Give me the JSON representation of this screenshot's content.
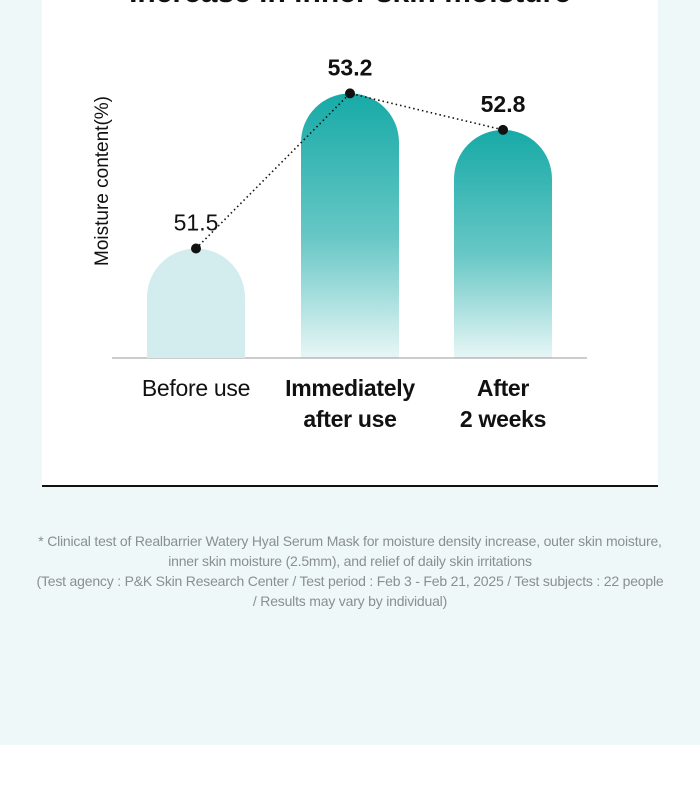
{
  "chart_data": {
    "type": "bar",
    "title": "Increase in inner skin moisture",
    "y_label": "Moisture content(%)",
    "categories": [
      "Before use",
      "Immediately\nafter use",
      "After\n2 weeks"
    ],
    "values": [
      51.5,
      53.2,
      52.8
    ],
    "colors": [
      "#d3ecee",
      "#17aaa7",
      "#17aaa7"
    ],
    "line_color": "#111111",
    "ylim": [
      50.3,
      53.5
    ]
  },
  "footnote": [
    "* Clinical test of Realbarrier Watery Hyal Serum Mask for moisture density increase, outer skin moisture,",
    "inner skin moisture (2.5mm), and relief of daily skin irritations",
    "(Test agency : P&K Skin Research Center / Test period : Feb 3 - Feb 21, 2025 / Test subjects : 22 people",
    "/ Results may vary by individual)"
  ]
}
